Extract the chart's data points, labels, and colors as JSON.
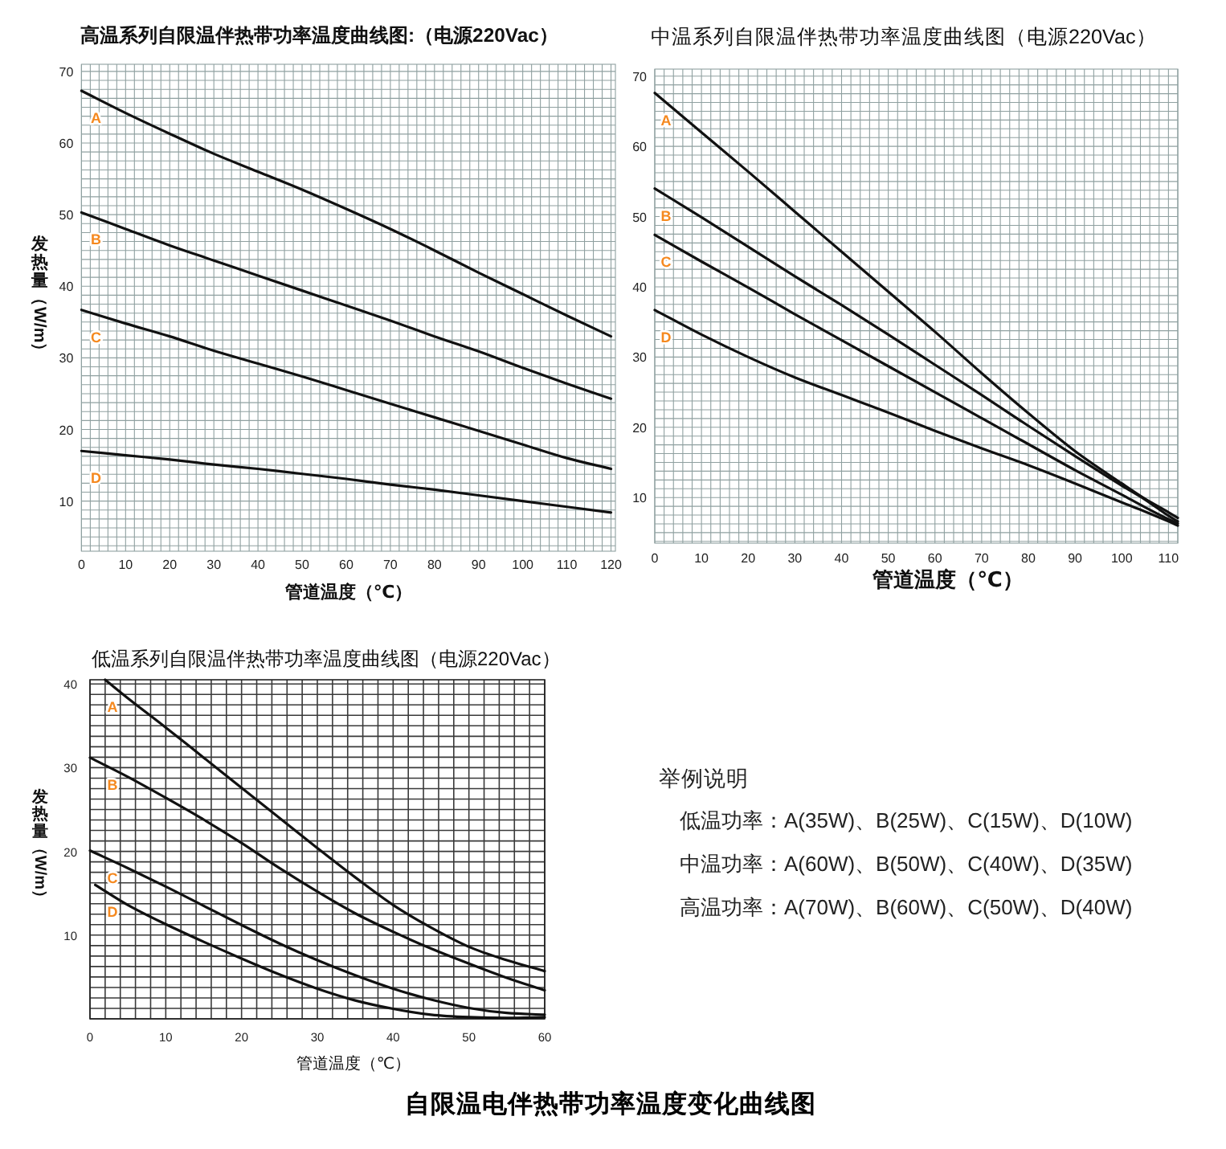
{
  "chart_data": [
    {
      "type": "line",
      "title": "高温系列自限温伴热带功率温度曲线图:（电源220Vac）",
      "xlabel": "管道温度（℃）",
      "ylabel": "发热量（W/m）",
      "xlim": [
        0,
        121
      ],
      "ylim": [
        3,
        71
      ],
      "xticks": [
        0,
        10,
        20,
        30,
        40,
        50,
        60,
        70,
        80,
        90,
        100,
        110,
        120
      ],
      "yticks": [
        10,
        20,
        30,
        40,
        50,
        60,
        70
      ],
      "grid": true,
      "series": [
        {
          "name": "A",
          "color": "#111111",
          "x": [
            0,
            10,
            20,
            30,
            40,
            50,
            60,
            70,
            80,
            90,
            100,
            110,
            120
          ],
          "values": [
            67.3,
            64.2,
            61.3,
            58.5,
            56.0,
            53.5,
            50.8,
            48.0,
            45.0,
            41.9,
            38.9,
            35.9,
            33.0
          ]
        },
        {
          "name": "B",
          "color": "#111111",
          "x": [
            0,
            10,
            20,
            30,
            40,
            50,
            60,
            70,
            80,
            90,
            100,
            110,
            120
          ],
          "values": [
            50.3,
            48.0,
            45.7,
            43.6,
            41.5,
            39.4,
            37.3,
            35.2,
            33.0,
            30.9,
            28.6,
            26.4,
            24.3
          ]
        },
        {
          "name": "C",
          "color": "#111111",
          "x": [
            0,
            10,
            20,
            30,
            40,
            50,
            60,
            70,
            80,
            90,
            100,
            110,
            120
          ],
          "values": [
            36.7,
            34.8,
            33.0,
            31.0,
            29.2,
            27.4,
            25.5,
            23.6,
            21.7,
            19.8,
            17.9,
            16.0,
            14.5
          ]
        },
        {
          "name": "D",
          "color": "#111111",
          "x": [
            0,
            10,
            20,
            30,
            40,
            50,
            60,
            70,
            80,
            90,
            100,
            110,
            120
          ],
          "values": [
            17.0,
            16.4,
            15.8,
            15.1,
            14.5,
            13.8,
            13.1,
            12.3,
            11.6,
            10.8,
            10.0,
            9.2,
            8.4
          ]
        }
      ]
    },
    {
      "type": "line",
      "title": "中温系列自限温伴热带功率温度曲线图（电源220Vac）",
      "xlabel": "管道温度（℃）",
      "xlim": [
        0,
        112
      ],
      "ylim": [
        3.5,
        71
      ],
      "xticks": [
        0,
        10,
        20,
        30,
        40,
        50,
        60,
        70,
        80,
        90,
        100,
        110
      ],
      "yticks": [
        10,
        20,
        30,
        40,
        50,
        60,
        70
      ],
      "grid": true,
      "series": [
        {
          "name": "A",
          "color": "#111111",
          "x": [
            0,
            10,
            20,
            30,
            40,
            50,
            60,
            70,
            80,
            90,
            100,
            105,
            110,
            112
          ],
          "values": [
            67.6,
            62.0,
            56.4,
            50.7,
            45.0,
            39.3,
            33.6,
            27.7,
            22.0,
            16.6,
            12.0,
            9.8,
            7.9,
            7.1
          ]
        },
        {
          "name": "B",
          "color": "#111111",
          "x": [
            0,
            10,
            20,
            30,
            40,
            50,
            60,
            70,
            80,
            90,
            100,
            105,
            110,
            112
          ],
          "values": [
            54.0,
            49.9,
            45.7,
            41.5,
            37.4,
            33.2,
            28.9,
            24.6,
            20.2,
            15.9,
            11.7,
            9.7,
            7.4,
            6.6
          ]
        },
        {
          "name": "C",
          "color": "#111111",
          "x": [
            0,
            10,
            20,
            30,
            40,
            50,
            60,
            70,
            80,
            90,
            100,
            105,
            110,
            112
          ],
          "values": [
            47.4,
            43.6,
            39.9,
            36.1,
            32.4,
            28.7,
            25.0,
            21.3,
            17.6,
            13.9,
            10.4,
            8.6,
            6.9,
            6.3
          ]
        },
        {
          "name": "D",
          "color": "#111111",
          "x": [
            0,
            10,
            20,
            30,
            40,
            50,
            60,
            70,
            80,
            90,
            100,
            105,
            110,
            112
          ],
          "values": [
            36.7,
            33.2,
            30.0,
            27.1,
            24.6,
            22.1,
            19.5,
            17.0,
            14.6,
            12.0,
            9.3,
            8.0,
            6.6,
            6.0
          ]
        }
      ]
    },
    {
      "type": "line",
      "title": "低温系列自限温伴热带功率温度曲线图（电源220Vac）",
      "xlabel": "管道温度（℃）",
      "ylabel": "发热量（W/m）",
      "xlim": [
        0,
        60
      ],
      "ylim": [
        0,
        40.5
      ],
      "xticks": [
        0,
        10,
        20,
        30,
        40,
        50,
        60
      ],
      "yticks": [
        10,
        20,
        30,
        40
      ],
      "grid": true,
      "series": [
        {
          "name": "A",
          "color": "#111111",
          "x": [
            2,
            5,
            10,
            15,
            20,
            25,
            30,
            35,
            40,
            45,
            50,
            55,
            60
          ],
          "values": [
            40.5,
            38.3,
            34.8,
            31.2,
            27.6,
            24.0,
            20.4,
            16.9,
            13.6,
            10.9,
            8.6,
            7.0,
            5.7
          ]
        },
        {
          "name": "B",
          "color": "#111111",
          "x": [
            0,
            5,
            10,
            15,
            20,
            25,
            30,
            35,
            40,
            45,
            50,
            55,
            60
          ],
          "values": [
            31.2,
            28.9,
            26.4,
            23.8,
            21.0,
            18.0,
            15.2,
            12.6,
            10.4,
            8.4,
            6.6,
            4.9,
            3.4
          ]
        },
        {
          "name": "C",
          "color": "#111111",
          "x": [
            0,
            5,
            10,
            15,
            20,
            25,
            30,
            35,
            40,
            45,
            50,
            55,
            60
          ],
          "values": [
            20.1,
            18.0,
            15.8,
            13.5,
            11.2,
            9.0,
            7.0,
            5.2,
            3.6,
            2.3,
            1.3,
            0.7,
            0.5
          ]
        },
        {
          "name": "D",
          "color": "#111111",
          "x": [
            0.7,
            5,
            10,
            15,
            20,
            25,
            30,
            35,
            40,
            45,
            50,
            55,
            60
          ],
          "values": [
            16.0,
            13.6,
            11.3,
            9.2,
            7.2,
            5.3,
            3.6,
            2.2,
            1.2,
            0.5,
            0.2,
            0.1,
            0.2
          ]
        }
      ]
    },
    {
      "type": "other",
      "title": "举例说明",
      "annotations": [
        "低温功率：A(35W)、B(25W)、C(15W)、D(10W)",
        "中温功率：A(60W)、B(50W)、C(40W)、D(35W)",
        "高温功率：A(70W)、B(60W)、C(50W)、D(40W)"
      ]
    },
    {
      "type": "other",
      "title": "自限温电伴热带功率温度变化曲线图"
    }
  ]
}
